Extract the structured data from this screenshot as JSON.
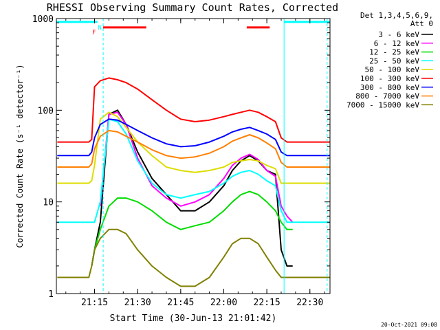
{
  "chart_data": {
    "type": "line",
    "title": "RHESSI Observing Summary Count Rates, Corrected",
    "xlabel": "Start Time (30-Jun-13 21:01:42)",
    "ylabel": "Corrected Count Rate (s⁻¹ detector⁻¹)",
    "y_scale": "log",
    "ylim": [
      1,
      1000
    ],
    "xlim": [
      "21:01:42",
      "22:37:00"
    ],
    "x_ticks": [
      "21:15",
      "21:30",
      "21:45",
      "22:00",
      "22:15",
      "22:30"
    ],
    "y_ticks": [
      "1",
      "10",
      "100",
      "1000"
    ],
    "x": [
      "21:02",
      "21:08",
      "21:13",
      "21:14",
      "21:15",
      "21:17",
      "21:20",
      "21:23",
      "21:26",
      "21:30",
      "21:35",
      "21:40",
      "21:45",
      "21:50",
      "21:55",
      "22:00",
      "22:03",
      "22:06",
      "22:09",
      "22:12",
      "22:15",
      "22:18",
      "22:20",
      "22:22",
      "22:24",
      "22:27",
      "22:30",
      "22:33",
      "22:37"
    ],
    "legend": {
      "header": [
        "Det 1,3,4,5,6,9,",
        "Att 0"
      ],
      "placement": "right"
    },
    "series": [
      {
        "name": "3 - 6 keV",
        "color": "#000000",
        "values": [
          null,
          null,
          null,
          2,
          3,
          6,
          90,
          100,
          70,
          35,
          18,
          12,
          8,
          8,
          10,
          15,
          22,
          28,
          32,
          28,
          22,
          20,
          3,
          2,
          2,
          null,
          null,
          null,
          null
        ]
      },
      {
        "name": "6 - 12 keV",
        "color": "#ff00ff",
        "values": [
          null,
          null,
          null,
          null,
          null,
          9,
          90,
          95,
          70,
          30,
          15,
          11,
          9,
          10,
          12,
          18,
          25,
          30,
          33,
          29,
          22,
          19,
          9,
          7,
          6,
          null,
          null,
          null,
          null
        ]
      },
      {
        "name": "12 - 25 keV",
        "color": "#00dd00",
        "values": [
          null,
          null,
          null,
          2,
          3,
          5,
          9,
          11,
          11,
          10,
          8,
          6,
          5,
          5.5,
          6,
          8,
          10,
          12,
          13,
          12,
          10,
          8,
          6,
          5,
          5,
          null,
          null,
          null,
          null
        ]
      },
      {
        "name": "25 - 50 keV",
        "color": "#00ffff",
        "values": [
          6,
          6,
          6,
          6,
          6,
          10,
          80,
          75,
          55,
          28,
          16,
          12,
          11,
          12,
          13,
          16,
          19,
          21,
          22,
          20,
          17,
          15,
          8,
          6,
          6,
          6,
          6,
          6,
          6
        ]
      },
      {
        "name": "50 - 100 keV",
        "color": "#dddd00",
        "values": [
          16,
          16,
          16,
          17,
          25,
          80,
          95,
          85,
          65,
          45,
          32,
          24,
          22,
          21,
          22,
          24,
          27,
          28,
          29,
          28,
          25,
          23,
          16,
          16,
          16,
          16,
          16,
          16,
          16
        ]
      },
      {
        "name": "100 - 300 keV",
        "color": "#ff0000",
        "values": [
          45,
          45,
          45,
          48,
          180,
          210,
          225,
          215,
          200,
          170,
          130,
          100,
          80,
          75,
          78,
          85,
          90,
          95,
          100,
          95,
          85,
          75,
          50,
          45,
          45,
          45,
          45,
          45,
          45
        ]
      },
      {
        "name": "300 - 800 keV",
        "color": "#0000ff",
        "values": [
          32,
          32,
          32,
          35,
          50,
          70,
          80,
          78,
          70,
          60,
          50,
          43,
          40,
          41,
          45,
          52,
          58,
          62,
          65,
          60,
          55,
          48,
          35,
          32,
          32,
          32,
          32,
          32,
          32
        ]
      },
      {
        "name": "800 - 7000 keV",
        "color": "#ff8000",
        "values": [
          24,
          24,
          24,
          26,
          38,
          52,
          60,
          58,
          52,
          45,
          37,
          32,
          30,
          31,
          34,
          40,
          46,
          50,
          54,
          50,
          44,
          38,
          27,
          24,
          24,
          24,
          24,
          24,
          24
        ]
      },
      {
        "name": "7000 - 15000 keV",
        "color": "#808000",
        "values": [
          1.5,
          1.5,
          1.5,
          2,
          3,
          4,
          5,
          5,
          4.5,
          3,
          2,
          1.5,
          1.2,
          1.2,
          1.5,
          2.5,
          3.5,
          4,
          4,
          3.5,
          2.5,
          1.8,
          1.5,
          1.5,
          1.5,
          1.5,
          1.5,
          1.5,
          1.5
        ]
      }
    ],
    "annotations": {
      "flags": [
        {
          "label": "F",
          "color": "#ff0000",
          "time": "21:16"
        },
        {
          "label": "N",
          "color": "#00ffff",
          "time": "21:18"
        }
      ],
      "bars": [
        {
          "color": "#00ffff",
          "level": 800,
          "start": "21:01:42",
          "end": "21:16"
        },
        {
          "color": "#ff0000",
          "level": 800,
          "start": "21:18",
          "end": "21:33"
        },
        {
          "color": "#ff0000",
          "level": 800,
          "start": "22:08",
          "end": "22:16"
        },
        {
          "color": "#00ffff",
          "level": 800,
          "start": "22:21",
          "end": "22:37"
        }
      ],
      "vlines": [
        {
          "color": "#00ffff",
          "style": "dashed",
          "time": "21:18"
        },
        {
          "color": "#00ffff",
          "style": "solid",
          "time": "22:21"
        },
        {
          "color": "#00ffff",
          "style": "dashed",
          "time": "22:36"
        }
      ]
    },
    "timestamp": "20-Oct-2021 09:08",
    "grid": false
  }
}
